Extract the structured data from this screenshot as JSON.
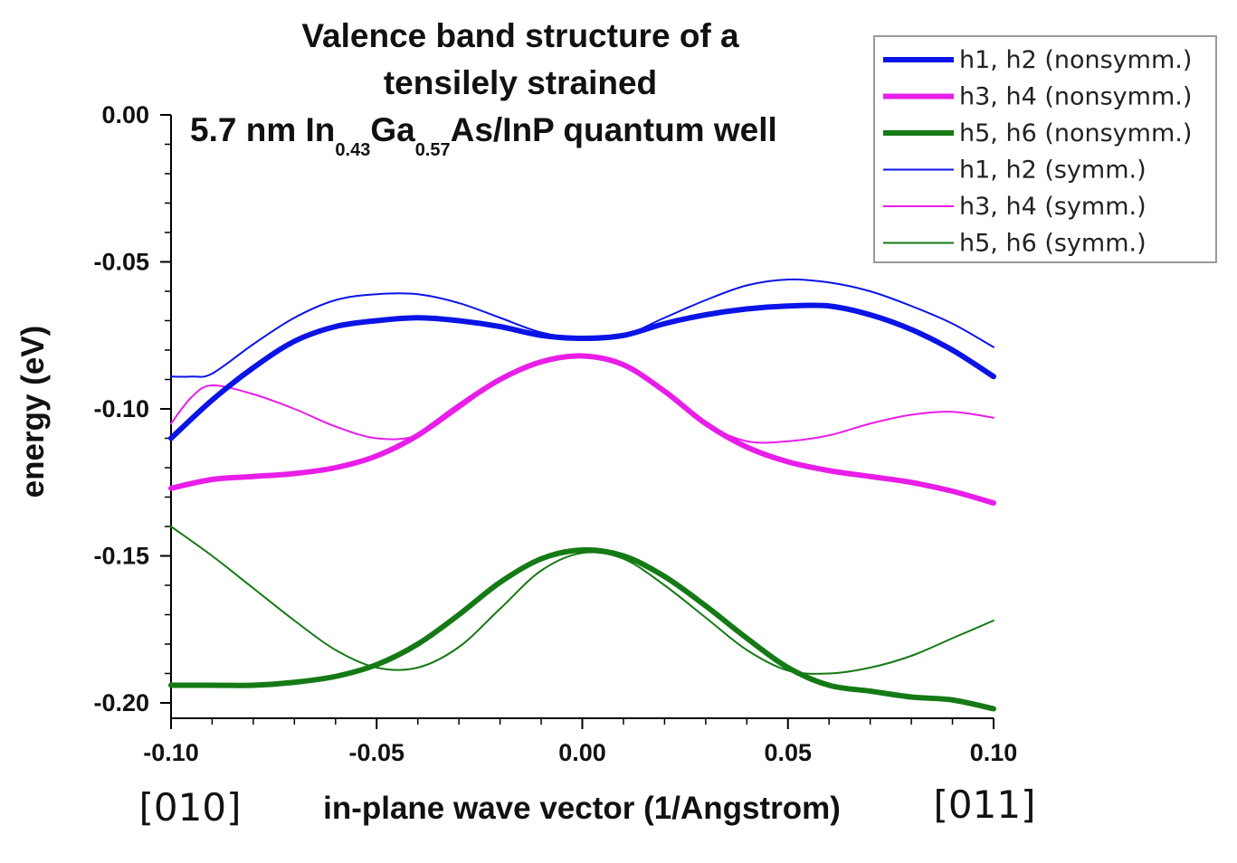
{
  "chart_data": {
    "type": "line",
    "title_lines": [
      "Valence band structure of a",
      "tensilely strained"
    ],
    "title_line3": {
      "prefix": "5.7 nm In",
      "sub1": "0.43",
      "mid": "Ga",
      "sub2": "0.57",
      "suffix": "As/InP quantum well"
    },
    "xlabel": "in-plane wave vector (1/Angstrom)",
    "ylabel": "energy (eV)",
    "x_left_direction": "[010]",
    "x_right_direction": "[011]",
    "xlim": [
      -0.1,
      0.1
    ],
    "ylim": [
      -0.205,
      0.0
    ],
    "x_ticks": [
      "-0.10",
      "-0.05",
      "0.00",
      "0.05",
      "0.10"
    ],
    "y_ticks": [
      "0.00",
      "-0.05",
      "-0.10",
      "-0.15",
      "-0.20"
    ],
    "legend_position": "top-right",
    "series": [
      {
        "name": "h1, h2 (nonsymm.)",
        "color": "#0a14e6",
        "style": "thick",
        "x": [
          -0.1,
          -0.09,
          -0.08,
          -0.07,
          -0.06,
          -0.05,
          -0.04,
          -0.03,
          -0.02,
          -0.01,
          0.0,
          0.01,
          0.02,
          0.03,
          0.04,
          0.05,
          0.06,
          0.07,
          0.08,
          0.09,
          0.1
        ],
        "y": [
          -0.11,
          -0.097,
          -0.086,
          -0.077,
          -0.072,
          -0.07,
          -0.069,
          -0.07,
          -0.072,
          -0.075,
          -0.076,
          -0.075,
          -0.071,
          -0.068,
          -0.066,
          -0.065,
          -0.065,
          -0.068,
          -0.073,
          -0.08,
          -0.089
        ]
      },
      {
        "name": "h3, h4 (nonsymm.)",
        "color": "#e81ee8",
        "style": "thick",
        "x": [
          -0.1,
          -0.09,
          -0.08,
          -0.07,
          -0.06,
          -0.05,
          -0.04,
          -0.03,
          -0.02,
          -0.01,
          0.0,
          0.01,
          0.02,
          0.03,
          0.04,
          0.05,
          0.06,
          0.07,
          0.08,
          0.09,
          0.1
        ],
        "y": [
          -0.127,
          -0.124,
          -0.123,
          -0.122,
          -0.12,
          -0.116,
          -0.109,
          -0.099,
          -0.09,
          -0.084,
          -0.082,
          -0.085,
          -0.094,
          -0.105,
          -0.113,
          -0.118,
          -0.121,
          -0.123,
          -0.125,
          -0.128,
          -0.132
        ]
      },
      {
        "name": "h5, h6 (nonsymm.)",
        "color": "#157a15",
        "style": "thick",
        "x": [
          -0.1,
          -0.09,
          -0.08,
          -0.07,
          -0.06,
          -0.05,
          -0.04,
          -0.03,
          -0.02,
          -0.01,
          0.0,
          0.01,
          0.02,
          0.03,
          0.04,
          0.05,
          0.06,
          0.07,
          0.08,
          0.09,
          0.1
        ],
        "y": [
          -0.194,
          -0.194,
          -0.194,
          -0.193,
          -0.191,
          -0.187,
          -0.18,
          -0.17,
          -0.159,
          -0.151,
          -0.148,
          -0.15,
          -0.157,
          -0.167,
          -0.178,
          -0.188,
          -0.194,
          -0.196,
          -0.198,
          -0.199,
          -0.202
        ]
      },
      {
        "name": "h1, h2 (symm.)",
        "color": "#0a14e6",
        "style": "thin",
        "x": [
          -0.1,
          -0.095,
          -0.09,
          -0.08,
          -0.07,
          -0.06,
          -0.05,
          -0.04,
          -0.03,
          -0.02,
          -0.01,
          0.0,
          0.01,
          0.02,
          0.03,
          0.04,
          0.05,
          0.06,
          0.07,
          0.08,
          0.09,
          0.1
        ],
        "y": [
          -0.089,
          -0.089,
          -0.088,
          -0.078,
          -0.069,
          -0.063,
          -0.061,
          -0.061,
          -0.064,
          -0.069,
          -0.074,
          -0.076,
          -0.075,
          -0.069,
          -0.063,
          -0.058,
          -0.056,
          -0.057,
          -0.06,
          -0.065,
          -0.071,
          -0.079
        ]
      },
      {
        "name": "h3, h4 (symm.)",
        "color": "#e81ee8",
        "style": "thin",
        "x": [
          -0.1,
          -0.095,
          -0.09,
          -0.08,
          -0.07,
          -0.06,
          -0.05,
          -0.04,
          -0.03,
          -0.02,
          -0.01,
          0.0,
          0.01,
          0.02,
          0.03,
          0.04,
          0.05,
          0.06,
          0.07,
          0.08,
          0.09,
          0.1
        ],
        "y": [
          -0.105,
          -0.096,
          -0.092,
          -0.095,
          -0.1,
          -0.106,
          -0.11,
          -0.109,
          -0.1,
          -0.09,
          -0.084,
          -0.082,
          -0.085,
          -0.094,
          -0.105,
          -0.111,
          -0.111,
          -0.109,
          -0.105,
          -0.102,
          -0.101,
          -0.103
        ]
      },
      {
        "name": "h5, h6 (symm.)",
        "color": "#157a15",
        "style": "thin",
        "x": [
          -0.1,
          -0.09,
          -0.08,
          -0.07,
          -0.06,
          -0.05,
          -0.04,
          -0.03,
          -0.02,
          -0.01,
          0.0,
          0.01,
          0.02,
          0.03,
          0.04,
          0.05,
          0.06,
          0.07,
          0.08,
          0.09,
          0.1
        ],
        "y": [
          -0.14,
          -0.15,
          -0.161,
          -0.172,
          -0.182,
          -0.188,
          -0.188,
          -0.181,
          -0.168,
          -0.155,
          -0.149,
          -0.151,
          -0.16,
          -0.171,
          -0.182,
          -0.189,
          -0.19,
          -0.188,
          -0.184,
          -0.178,
          -0.172
        ]
      }
    ]
  }
}
